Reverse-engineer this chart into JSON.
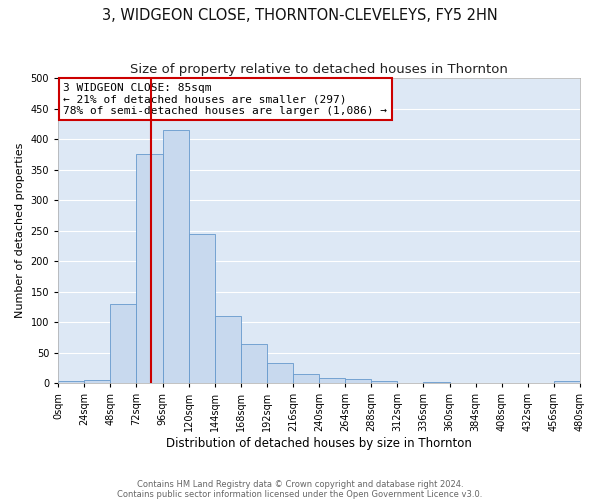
{
  "title": "3, WIDGEON CLOSE, THORNTON-CLEVELEYS, FY5 2HN",
  "subtitle": "Size of property relative to detached houses in Thornton",
  "xlabel": "Distribution of detached houses by size in Thornton",
  "ylabel": "Number of detached properties",
  "bar_color": "#c8d9ee",
  "bar_edge_color": "#6699cc",
  "background_color": "#dde8f5",
  "grid_color": "#ffffff",
  "bin_edges": [
    0,
    24,
    48,
    72,
    96,
    120,
    144,
    168,
    192,
    216,
    240,
    264,
    288,
    312,
    336,
    360,
    384,
    408,
    432,
    456,
    480
  ],
  "bin_counts": [
    3,
    5,
    130,
    375,
    415,
    245,
    110,
    65,
    33,
    15,
    8,
    7,
    3,
    0,
    2,
    0,
    0,
    0,
    0,
    3
  ],
  "property_size": 85,
  "vline_color": "#cc0000",
  "annotation_line1": "3 WIDGEON CLOSE: 85sqm",
  "annotation_line2": "← 21% of detached houses are smaller (297)",
  "annotation_line3": "78% of semi-detached houses are larger (1,086) →",
  "annotation_box_color": "#cc0000",
  "ylim": [
    0,
    500
  ],
  "yticks": [
    0,
    50,
    100,
    150,
    200,
    250,
    300,
    350,
    400,
    450,
    500
  ],
  "xtick_labels": [
    "0sqm",
    "24sqm",
    "48sqm",
    "72sqm",
    "96sqm",
    "120sqm",
    "144sqm",
    "168sqm",
    "192sqm",
    "216sqm",
    "240sqm",
    "264sqm",
    "288sqm",
    "312sqm",
    "336sqm",
    "360sqm",
    "384sqm",
    "408sqm",
    "432sqm",
    "456sqm",
    "480sqm"
  ],
  "footer_line1": "Contains HM Land Registry data © Crown copyright and database right 2024.",
  "footer_line2": "Contains public sector information licensed under the Open Government Licence v3.0.",
  "title_fontsize": 10.5,
  "subtitle_fontsize": 9.5,
  "xlabel_fontsize": 8.5,
  "ylabel_fontsize": 8,
  "tick_fontsize": 7,
  "footer_fontsize": 6,
  "annotation_fontsize": 8,
  "fig_bg": "#ffffff"
}
